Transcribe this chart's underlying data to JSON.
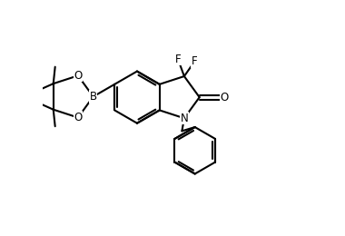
{
  "bg": "#ffffff",
  "lc": "#000000",
  "lw": 1.5,
  "fs": 8.5,
  "figsize": [
    3.8,
    2.6
  ],
  "dpi": 100,
  "xlim": [
    -1.5,
    8.5
  ],
  "ylim": [
    -3.5,
    5.5
  ]
}
